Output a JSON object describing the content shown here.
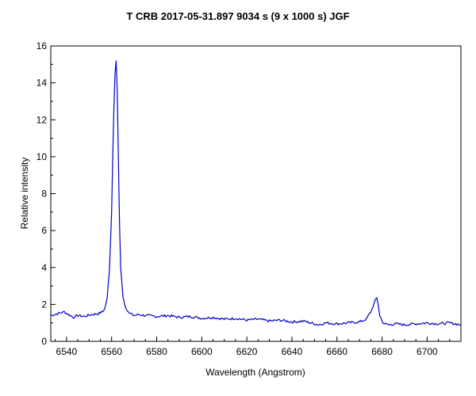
{
  "chart_data": {
    "type": "line",
    "title": "T CRB   2017-05-31.897  9034 s (9 x 1000 s)   JGF",
    "xlabel": "Wavelength (Angstrom)",
    "ylabel": "Relative intensity",
    "xlim": [
      6533,
      6715
    ],
    "ylim": [
      0,
      16
    ],
    "xticks": [
      "6540",
      "6560",
      "6580",
      "6600",
      "6620",
      "6640",
      "6660",
      "6680",
      "6700"
    ],
    "yticks": [
      "0",
      "2",
      "4",
      "6",
      "8",
      "10",
      "12",
      "14",
      "16"
    ],
    "grid": false,
    "legend": "none",
    "series": [
      {
        "color": "#0000cc",
        "x": [
          6533,
          6536,
          6539,
          6541,
          6543,
          6545,
          6548,
          6551,
          6554,
          6556,
          6557,
          6558,
          6559,
          6560,
          6560.5,
          6561,
          6561.5,
          6562,
          6562.5,
          6563,
          6563.5,
          6564,
          6565,
          6566,
          6567,
          6568,
          6570,
          6572,
          6575,
          6580,
          6585,
          6590,
          6595,
          6600,
          6605,
          6610,
          6615,
          6620,
          6625,
          6630,
          6635,
          6640,
          6645,
          6650,
          6652,
          6655,
          6660,
          6665,
          6670,
          6673,
          6675,
          6676,
          6677,
          6677.7,
          6678.3,
          6679,
          6680,
          6681,
          6683,
          6686,
          6690,
          6695,
          6700,
          6705,
          6710,
          6715
        ],
        "y": [
          1.4,
          1.5,
          1.6,
          1.45,
          1.3,
          1.4,
          1.35,
          1.45,
          1.5,
          1.6,
          1.8,
          2.3,
          3.8,
          7.0,
          10.0,
          12.5,
          14.5,
          15.2,
          13.5,
          10.0,
          6.5,
          4.0,
          2.5,
          1.9,
          1.7,
          1.5,
          1.4,
          1.45,
          1.4,
          1.35,
          1.4,
          1.3,
          1.35,
          1.25,
          1.3,
          1.2,
          1.25,
          1.15,
          1.2,
          1.1,
          1.15,
          1.05,
          1.1,
          0.95,
          0.9,
          1.0,
          0.95,
          1.0,
          1.05,
          1.2,
          1.6,
          1.9,
          2.2,
          2.35,
          2.0,
          1.4,
          1.1,
          0.95,
          0.9,
          0.95,
          0.9,
          0.95,
          1.0,
          0.95,
          1.0,
          0.9
        ]
      }
    ]
  }
}
